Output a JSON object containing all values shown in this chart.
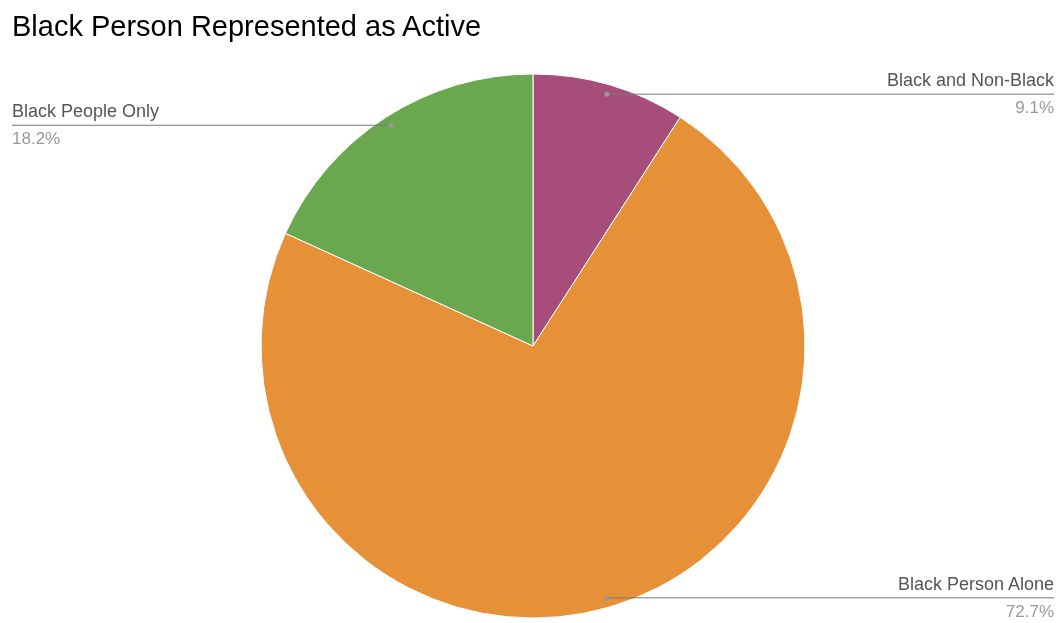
{
  "chart_data": {
    "type": "pie",
    "title": "Black Person Represented as Active",
    "categories": [
      "Black and Non-Black",
      "Black Person Alone",
      "Black People Only"
    ],
    "values": [
      9.1,
      72.7,
      18.2
    ],
    "colors": [
      "#a64d79",
      "#e69138",
      "#6aa84f"
    ],
    "value_labels": [
      "9.1%",
      "72.7%",
      "18.2%"
    ]
  }
}
